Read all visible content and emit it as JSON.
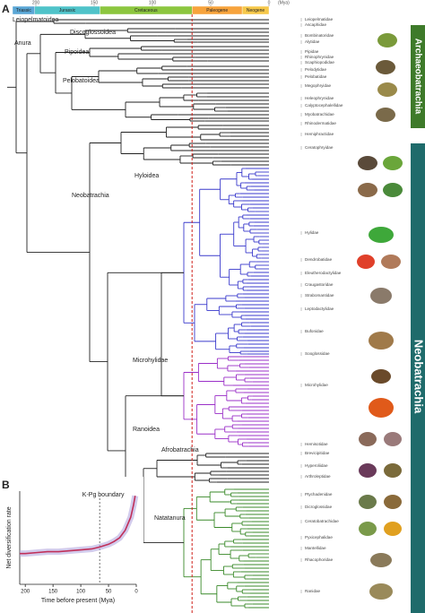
{
  "panel_a": {
    "label": "A",
    "periods": [
      {
        "name": "Triassic",
        "color": "#5aa7d6"
      },
      {
        "name": "Jurassic",
        "color": "#4fc3c9"
      },
      {
        "name": "Cretaceous",
        "color": "#8cc63f"
      },
      {
        "name": "Paleogene",
        "color": "#f7a33c"
      },
      {
        "name": "Neogene",
        "color": "#f6c84a"
      }
    ],
    "period_bounds": [
      252,
      201,
      145,
      66,
      23,
      0
    ],
    "time_ticks": [
      200,
      150,
      100,
      50,
      0
    ],
    "time_unit": "(Mya)",
    "clades": [
      "Leiopelmatoidea",
      "Anura",
      "Discoglossoidea",
      "Pipoidea",
      "Pelobatoidea",
      "Neobatrachia",
      "Hyloidea",
      "Microhylidae",
      "Ranoidea",
      "Afrobatrachia",
      "Natatanura"
    ],
    "groups": [
      "Archaeobatrachia",
      "Neobatrachia"
    ],
    "families": [
      "Leiopelmatidae",
      "Ascaphidae",
      "Bombinatoridae",
      "Alytidae",
      "Pipidae",
      "Rhinophrynidae",
      "Scaphiopodidae",
      "Pelodytidae",
      "Pelobatidae",
      "Megophryidae",
      "Heleophrynidae",
      "Calyptocephalellidae",
      "Myobatrachidae",
      "Rhinodermatidae",
      "Hemiphractidae",
      "Ceratophryidae",
      "Hylidae",
      "Dendrobatidae",
      "Eleutherodactylidae",
      "Craugastoridae",
      "Strabomantidae",
      "Leptodactylidae",
      "Bufonidae",
      "Sooglossidae",
      "Microhylidae",
      "Hemisotidae",
      "Brevicipitidae",
      "Hyperoliidae",
      "Arthroleptidae",
      "Ptychadenidae",
      "Dicroglossidae",
      "Ceratobatrachidae",
      "Pyxicephalidae",
      "Mantellidae",
      "Rhacophoridae",
      "Ranidae"
    ]
  },
  "chart_data": {
    "type": "line",
    "panel_label": "B",
    "annotation": "K-Pg boundary",
    "kpg": 66,
    "x_label": "Time before present (Mya)",
    "y_label": "Net diversification rate",
    "x": [
      210,
      200,
      180,
      160,
      140,
      120,
      100,
      80,
      66,
      50,
      40,
      30,
      20,
      10,
      5,
      2
    ],
    "series": [
      {
        "name": "Net diversification rate",
        "color": "#c0305a",
        "values": [
          0.33,
          0.33,
          0.34,
          0.35,
          0.35,
          0.36,
          0.37,
          0.38,
          0.4,
          0.43,
          0.46,
          0.5,
          0.58,
          0.72,
          0.85,
          0.95
        ]
      }
    ],
    "xlim": [
      210,
      0
    ],
    "ylim": [
      0,
      1
    ],
    "xticks": [
      200,
      150,
      100,
      50,
      0
    ]
  }
}
